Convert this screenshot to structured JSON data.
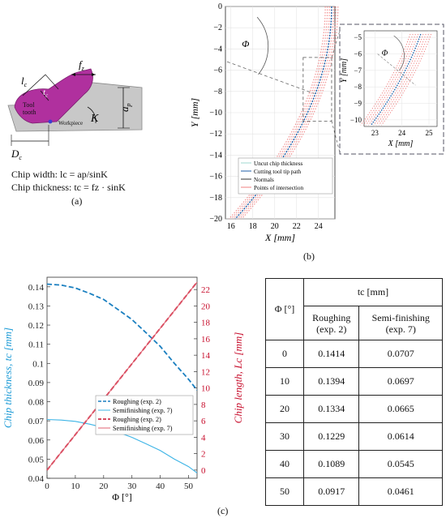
{
  "panel_a": {
    "label": "(a)",
    "labels": {
      "lc": "l",
      "lc_sub": "c",
      "tc": "t",
      "tc_sub": "c",
      "fz": "f",
      "fz_sub": "z",
      "ap": "a",
      "ap_sub": "p",
      "kappa": "K",
      "dc": "D",
      "dc_sub": "c",
      "tool": "Tool",
      "tooth": "tooth",
      "workpiece": "Workpiece"
    },
    "formula_width": "Chip width: lc = ap/sinK",
    "formula_thickness": "Chip thickness: tc = fz · sinK",
    "colors": {
      "tool": "#b0309e",
      "workpiece": "#c8c8c8"
    }
  },
  "panel_b": {
    "label": "(b)",
    "main": {
      "xlabel_var": "X",
      "xlabel_unit": "[mm]",
      "ylabel_var": "Y",
      "ylabel_unit": "[mm]",
      "xticks": [
        "16",
        "18",
        "20",
        "22",
        "24"
      ],
      "yticks": [
        "0",
        "−2",
        "−4",
        "−6",
        "−8",
        "−10",
        "−12",
        "−14",
        "−16",
        "−18",
        "−20"
      ],
      "phi": "Φ",
      "legend": [
        "Uncut chip thickness",
        "Cutting tool tip path",
        "Normals",
        "Points of intersection"
      ]
    },
    "inset": {
      "xlabel_var": "X",
      "xlabel_unit": "[mm]",
      "ylabel_var": "Y",
      "ylabel_unit": "[mm]",
      "xticks": [
        "23",
        "24",
        "25"
      ],
      "yticks": [
        "−5",
        "−6",
        "−7",
        "−8",
        "−9",
        "−10"
      ],
      "phi": "Φ"
    },
    "colors": {
      "path": "#1f5fa8",
      "intersection": "#f08080",
      "normals": "#555555"
    }
  },
  "chart_data": {
    "type": "line",
    "x": [
      0,
      10,
      20,
      30,
      40,
      50
    ],
    "xlabel": "Φ [°]",
    "xlim": [
      0,
      53
    ],
    "xticks": [
      "0",
      "10",
      "20",
      "30",
      "40",
      "50"
    ],
    "y_left": {
      "label": "Chip thickness, tc [mm]",
      "lim": [
        0.04,
        0.145
      ],
      "ticks": [
        "0.04",
        "0.05",
        "0.06",
        "0.07",
        "0.08",
        "0.09",
        "0.1",
        "0.11",
        "0.12",
        "0.13",
        "0.14"
      ],
      "color": "#1a9ad6"
    },
    "y_right": {
      "label": "Chip length, Lc [mm]",
      "lim": [
        -1,
        23.5
      ],
      "ticks": [
        "0",
        "2",
        "4",
        "6",
        "8",
        "10",
        "12",
        "14",
        "16",
        "18",
        "20",
        "22"
      ],
      "color": "#c8102e"
    },
    "series": [
      {
        "name": "Roughing (exp. 2)",
        "axis": "left",
        "style": "dashed",
        "color": "#1a7fc0",
        "x": [
          0,
          5,
          10,
          15,
          20,
          25,
          30,
          35,
          40,
          45,
          50,
          53
        ],
        "values": [
          0.1414,
          0.1409,
          0.1394,
          0.1366,
          0.1334,
          0.1282,
          0.1229,
          0.116,
          0.1089,
          0.1,
          0.0917,
          0.086
        ]
      },
      {
        "name": "Semifinishing (exp. 7)",
        "axis": "left",
        "style": "solid",
        "color": "#3db4e6",
        "x": [
          0,
          5,
          10,
          15,
          20,
          25,
          30,
          35,
          40,
          45,
          50,
          53
        ],
        "values": [
          0.0707,
          0.0704,
          0.0697,
          0.0683,
          0.0665,
          0.0641,
          0.0614,
          0.058,
          0.0545,
          0.05,
          0.0461,
          0.0428
        ]
      },
      {
        "name": "Roughing (exp. 2)",
        "axis": "right",
        "style": "dashed",
        "color": "#c8102e",
        "x": [
          0,
          53
        ],
        "values": [
          0,
          22.9
        ]
      },
      {
        "name": "Semifinishing (exp. 7)",
        "axis": "right",
        "style": "solid",
        "color": "#e06070",
        "x": [
          0,
          53
        ],
        "values": [
          0,
          22.9
        ]
      }
    ],
    "legend": [
      "Roughing (exp. 2)",
      "Semifinishing (exp. 7)",
      "Roughing (exp. 2)",
      "Semifinishing (exp. 7)"
    ]
  },
  "table": {
    "col_phi": "Φ [°]",
    "col_tc": "tc [mm]",
    "col_roughing": [
      "Roughing",
      "(exp. 2)"
    ],
    "col_semi": [
      "Semi-finishing",
      "(exp. 7)"
    ],
    "rows": [
      [
        "0",
        "0.1414",
        "0.0707"
      ],
      [
        "10",
        "0.1394",
        "0.0697"
      ],
      [
        "20",
        "0.1334",
        "0.0665"
      ],
      [
        "30",
        "0.1229",
        "0.0614"
      ],
      [
        "40",
        "0.1089",
        "0.0545"
      ],
      [
        "50",
        "0.0917",
        "0.0461"
      ]
    ]
  },
  "panel_c": {
    "label": "(c)"
  }
}
